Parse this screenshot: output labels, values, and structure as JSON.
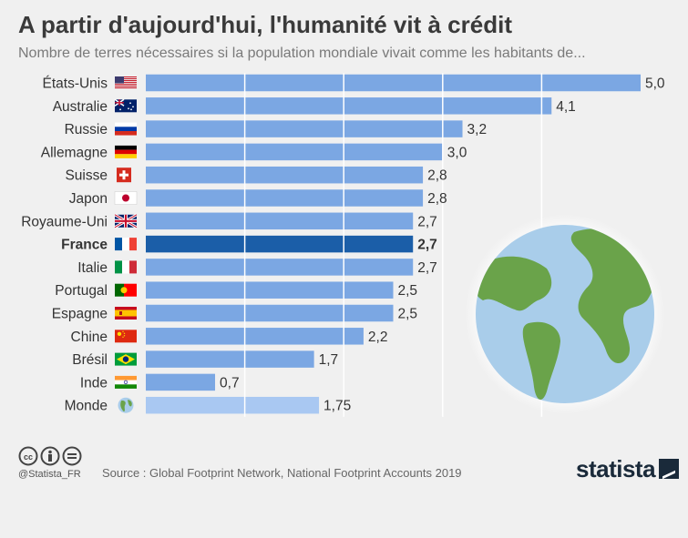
{
  "title": "A partir d'aujourd'hui, l'humanité vit à crédit",
  "subtitle": "Nombre de terres nécessaires si la population mondiale vivait comme les habitants de...",
  "source": "Source : Global Footprint Network, National Footprint Accounts 2019",
  "handle": "@Statista_FR",
  "brand": "statista",
  "colors": {
    "bar": "#7ba7e3",
    "highlight": "#1b5ea8",
    "world": "#a9c8f2",
    "background": "#f0f0f0",
    "grid": "#ffffff"
  },
  "icons": {
    "license": [
      "cc-icon",
      "attribution-icon",
      "noderivs-icon"
    ]
  },
  "chart_data": {
    "type": "bar",
    "orientation": "horizontal",
    "xlim": [
      0,
      5.0
    ],
    "grid": true,
    "categories": [
      "États-Unis",
      "Australie",
      "Russie",
      "Allemagne",
      "Suisse",
      "Japon",
      "Royaume-Uni",
      "France",
      "Italie",
      "Portugal",
      "Espagne",
      "Chine",
      "Brésil",
      "Inde",
      "Monde"
    ],
    "values": [
      5.0,
      4.1,
      3.2,
      3.0,
      2.8,
      2.8,
      2.7,
      2.7,
      2.7,
      2.5,
      2.5,
      2.2,
      1.7,
      0.7,
      1.75
    ],
    "value_labels": [
      "5,0",
      "4,1",
      "3,2",
      "3,0",
      "2,8",
      "2,8",
      "2,7",
      "2,7",
      "2,7",
      "2,5",
      "2,5",
      "2,2",
      "1,7",
      "0,7",
      "1,75"
    ],
    "flags": [
      "us-flag-icon",
      "australia-flag-icon",
      "russia-flag-icon",
      "germany-flag-icon",
      "switzerland-flag-icon",
      "japan-flag-icon",
      "uk-flag-icon",
      "france-flag-icon",
      "italy-flag-icon",
      "portugal-flag-icon",
      "spain-flag-icon",
      "china-flag-icon",
      "brazil-flag-icon",
      "india-flag-icon",
      "globe-icon"
    ],
    "highlight": "France",
    "muted": "Monde"
  }
}
